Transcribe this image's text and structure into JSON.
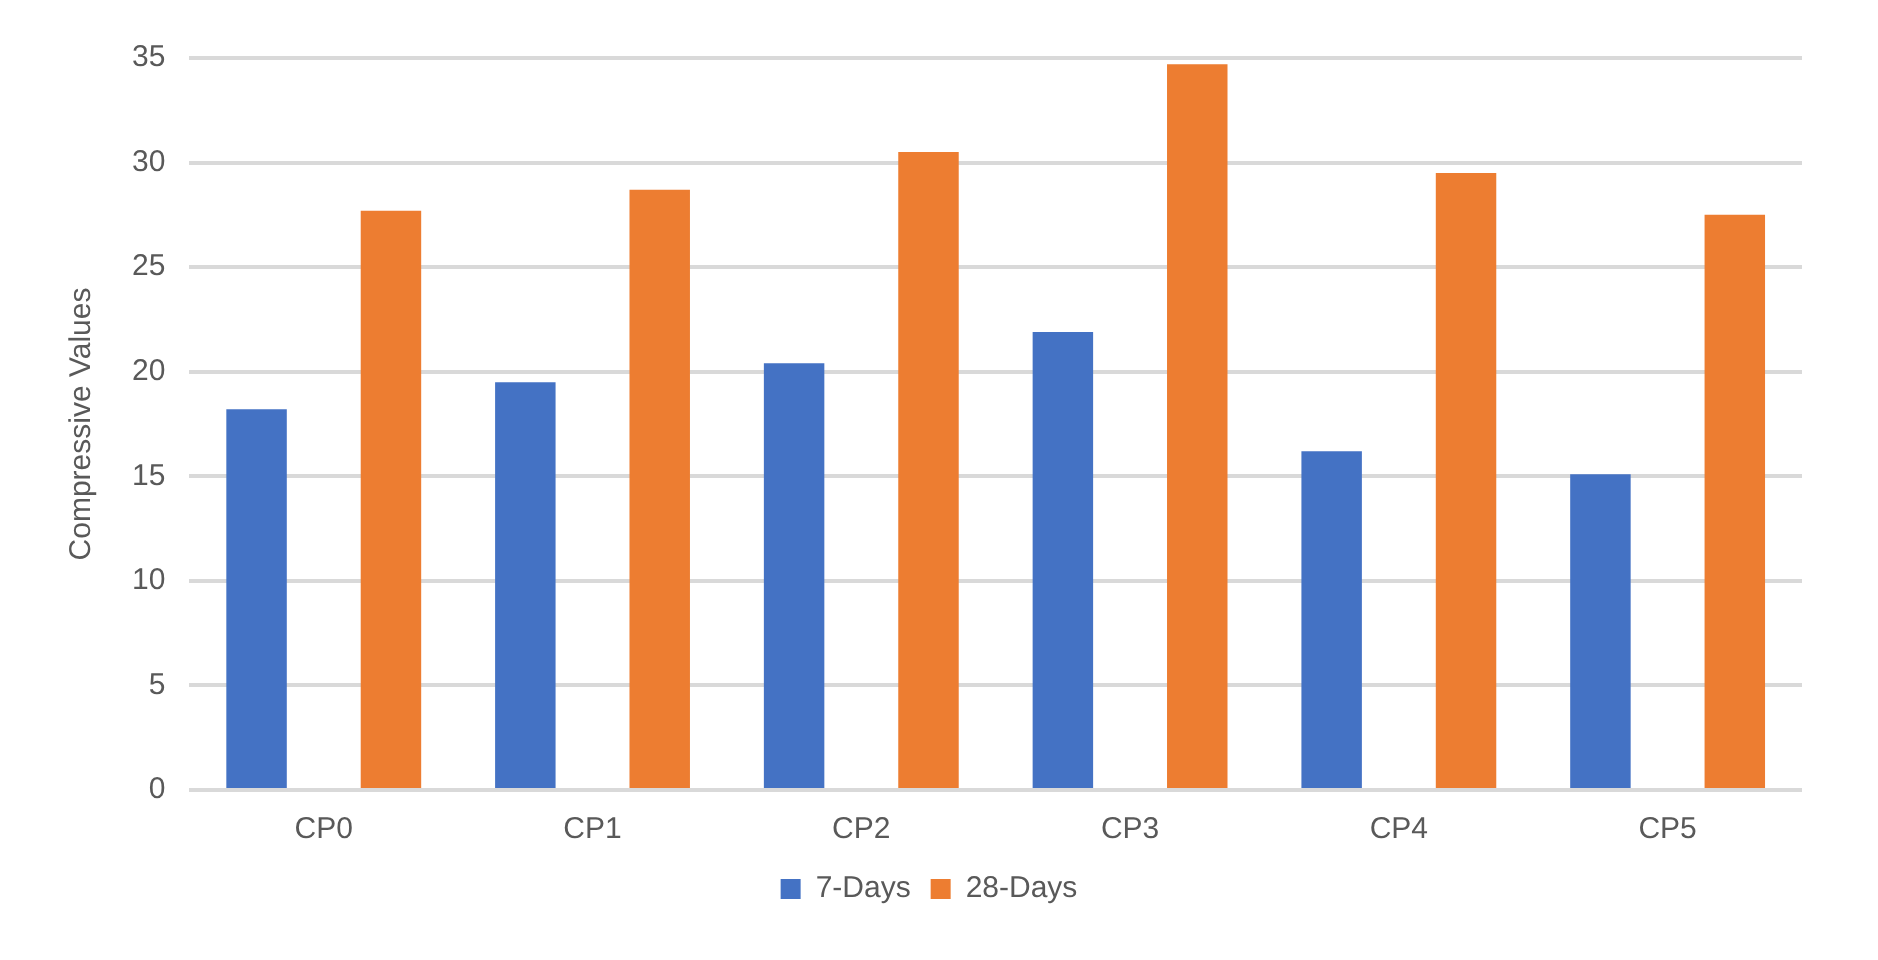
{
  "chart_data": {
    "type": "bar",
    "ylabel": "Compressive Values",
    "categories": [
      "CP0",
      "CP1",
      "CP2",
      "CP3",
      "CP4",
      "CP5"
    ],
    "series": [
      {
        "name": "7-Days",
        "color": "#4472c4",
        "values": [
          18.2,
          19.5,
          20.4,
          21.9,
          16.2,
          15.1
        ]
      },
      {
        "name": "28-Days",
        "color": "#ed7d31",
        "values": [
          27.7,
          28.7,
          30.5,
          34.7,
          29.5,
          27.5
        ]
      }
    ],
    "ylim": [
      0,
      35
    ],
    "yticks": [
      0,
      5,
      10,
      15,
      20,
      25,
      30,
      35
    ],
    "grid": "y",
    "legend": "bottom"
  }
}
